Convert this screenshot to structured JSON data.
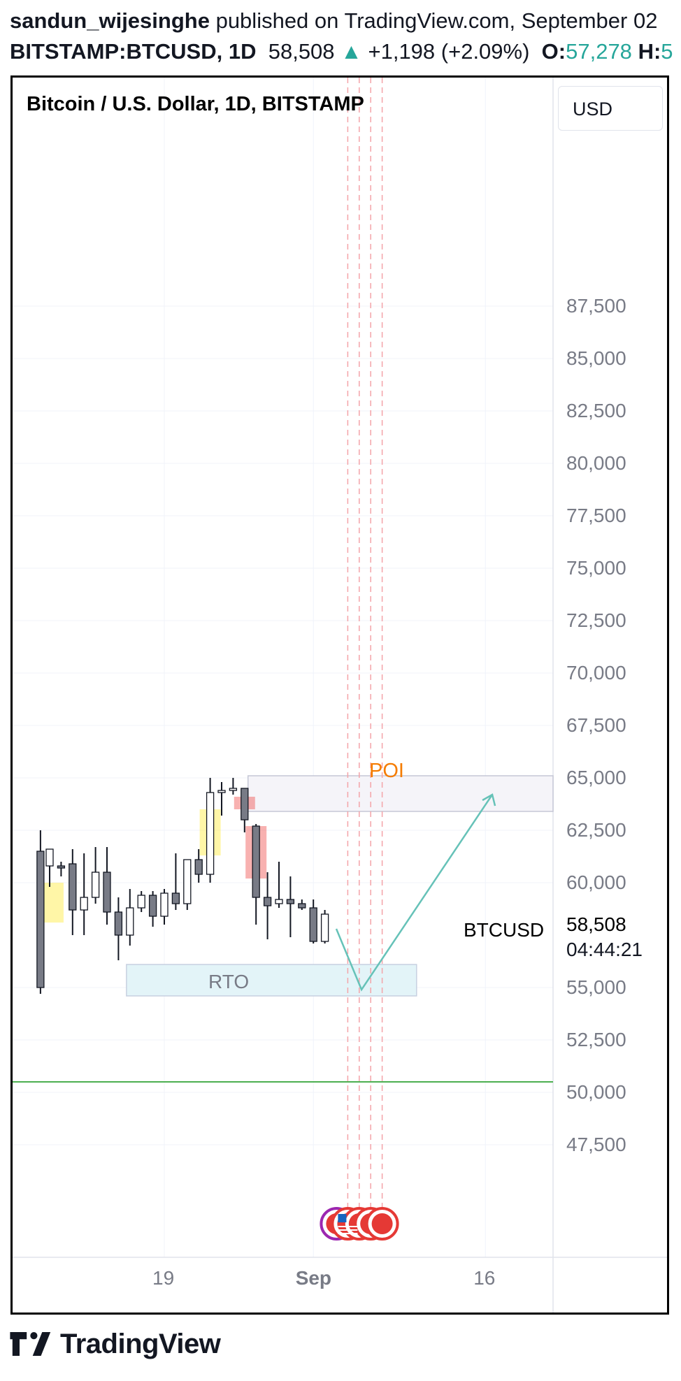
{
  "header": {
    "author": "sandun_wijesinghe",
    "published": "published on TradingView.com, September 02",
    "symbol": "BITSTAMP:BTCUSD, 1D",
    "last": "58,508",
    "change": "+1,198 (+2.09%)",
    "open_label": "O:",
    "open_value": "57,278",
    "high_label": "H:",
    "high_value": "5"
  },
  "currency_button": "USD",
  "symbol_tag": "BTCUSD",
  "price_now": "58,508",
  "countdown": "04:44:21",
  "footer": {
    "brand": "TradingView"
  },
  "colors": {
    "up": "#26a69a",
    "bear_body": "#787b86",
    "poi": "#f57c00",
    "rto_fill": "#e3f4f8",
    "support_line": "#4caf50",
    "event_line": "#f4a3a8"
  },
  "chart_data": {
    "type": "candlestick",
    "title": "Bitcoin / U.S. Dollar, 1D, BITSTAMP",
    "ylim": [
      45000,
      90000
    ],
    "y_ticks": [
      87500,
      85000,
      82500,
      80000,
      77500,
      75000,
      72500,
      70000,
      67500,
      65000,
      62500,
      60000,
      55000,
      52500,
      50000,
      47500
    ],
    "x_ticks": [
      {
        "label": "19",
        "day": 10
      },
      {
        "label": "Sep",
        "day": 23
      },
      {
        "label": "16",
        "day": 38
      }
    ],
    "candles": [
      {
        "day": -0.8,
        "o": 61500,
        "h": 62500,
        "l": 54700,
        "c": 55000
      },
      {
        "day": 0,
        "o": 60800,
        "h": 61600,
        "l": 59800,
        "c": 61600
      },
      {
        "day": 1,
        "o": 60800,
        "h": 61000,
        "l": 60300,
        "c": 60700
      },
      {
        "day": 2,
        "o": 60900,
        "h": 61600,
        "l": 57500,
        "c": 58700
      },
      {
        "day": 3,
        "o": 58700,
        "h": 61400,
        "l": 57500,
        "c": 59300
      },
      {
        "day": 4,
        "o": 59300,
        "h": 61700,
        "l": 59000,
        "c": 60500
      },
      {
        "day": 5,
        "o": 60500,
        "h": 61700,
        "l": 58000,
        "c": 58600
      },
      {
        "day": 6,
        "o": 58600,
        "h": 59300,
        "l": 56300,
        "c": 57500
      },
      {
        "day": 7,
        "o": 57500,
        "h": 59700,
        "l": 57000,
        "c": 58800
      },
      {
        "day": 8,
        "o": 58800,
        "h": 59600,
        "l": 58600,
        "c": 59400
      },
      {
        "day": 9,
        "o": 59400,
        "h": 59600,
        "l": 57900,
        "c": 58400
      },
      {
        "day": 10,
        "o": 58400,
        "h": 59700,
        "l": 58000,
        "c": 59500
      },
      {
        "day": 11,
        "o": 59500,
        "h": 61400,
        "l": 58700,
        "c": 59000
      },
      {
        "day": 12,
        "o": 59000,
        "h": 61100,
        "l": 58700,
        "c": 61100
      },
      {
        "day": 13,
        "o": 61100,
        "h": 61600,
        "l": 60000,
        "c": 60400
      },
      {
        "day": 14,
        "o": 60400,
        "h": 65000,
        "l": 60000,
        "c": 64300
      },
      {
        "day": 15,
        "o": 64300,
        "h": 64800,
        "l": 63200,
        "c": 64400
      },
      {
        "day": 16,
        "o": 64400,
        "h": 65000,
        "l": 64200,
        "c": 64500
      },
      {
        "day": 17,
        "o": 64500,
        "h": 64500,
        "l": 62400,
        "c": 63000
      },
      {
        "day": 18,
        "o": 62700,
        "h": 62800,
        "l": 58000,
        "c": 59300
      },
      {
        "day": 19,
        "o": 59300,
        "h": 60500,
        "l": 57300,
        "c": 58900
      },
      {
        "day": 20,
        "o": 59000,
        "h": 61000,
        "l": 58800,
        "c": 59200
      },
      {
        "day": 21,
        "o": 59200,
        "h": 60300,
        "l": 57400,
        "c": 59000
      },
      {
        "day": 22,
        "o": 59000,
        "h": 59200,
        "l": 58700,
        "c": 58800
      },
      {
        "day": 23,
        "o": 58800,
        "h": 59200,
        "l": 57100,
        "c": 57200
      },
      {
        "day": 24,
        "o": 57200,
        "h": 58700,
        "l": 57100,
        "c": 58500
      }
    ],
    "highlights": [
      {
        "day": 0.3,
        "from": 58100,
        "to": 60000,
        "color": "#ffeb3b"
      },
      {
        "day": 14,
        "from": 61300,
        "to": 63500,
        "color": "#ffeb3b"
      },
      {
        "day": 17,
        "from": 63500,
        "to": 64100,
        "color": "#ef5350"
      },
      {
        "day": 18,
        "from": 60200,
        "to": 62700,
        "color": "#ef5350"
      }
    ],
    "zones": [
      {
        "label": "POI",
        "day_from": 17.3,
        "day_to": 47,
        "from": 63400,
        "to": 65100
      },
      {
        "label": "RTO",
        "day_from": 6.7,
        "day_to": 32,
        "from": 54600,
        "to": 56100
      }
    ],
    "support_line": 50500,
    "event_lines": [
      26,
      27,
      28,
      29
    ],
    "projection": [
      {
        "day": 25,
        "value": 57800
      },
      {
        "day": 27.2,
        "value": 54900
      },
      {
        "day": 38.6,
        "value": 64200
      }
    ]
  }
}
